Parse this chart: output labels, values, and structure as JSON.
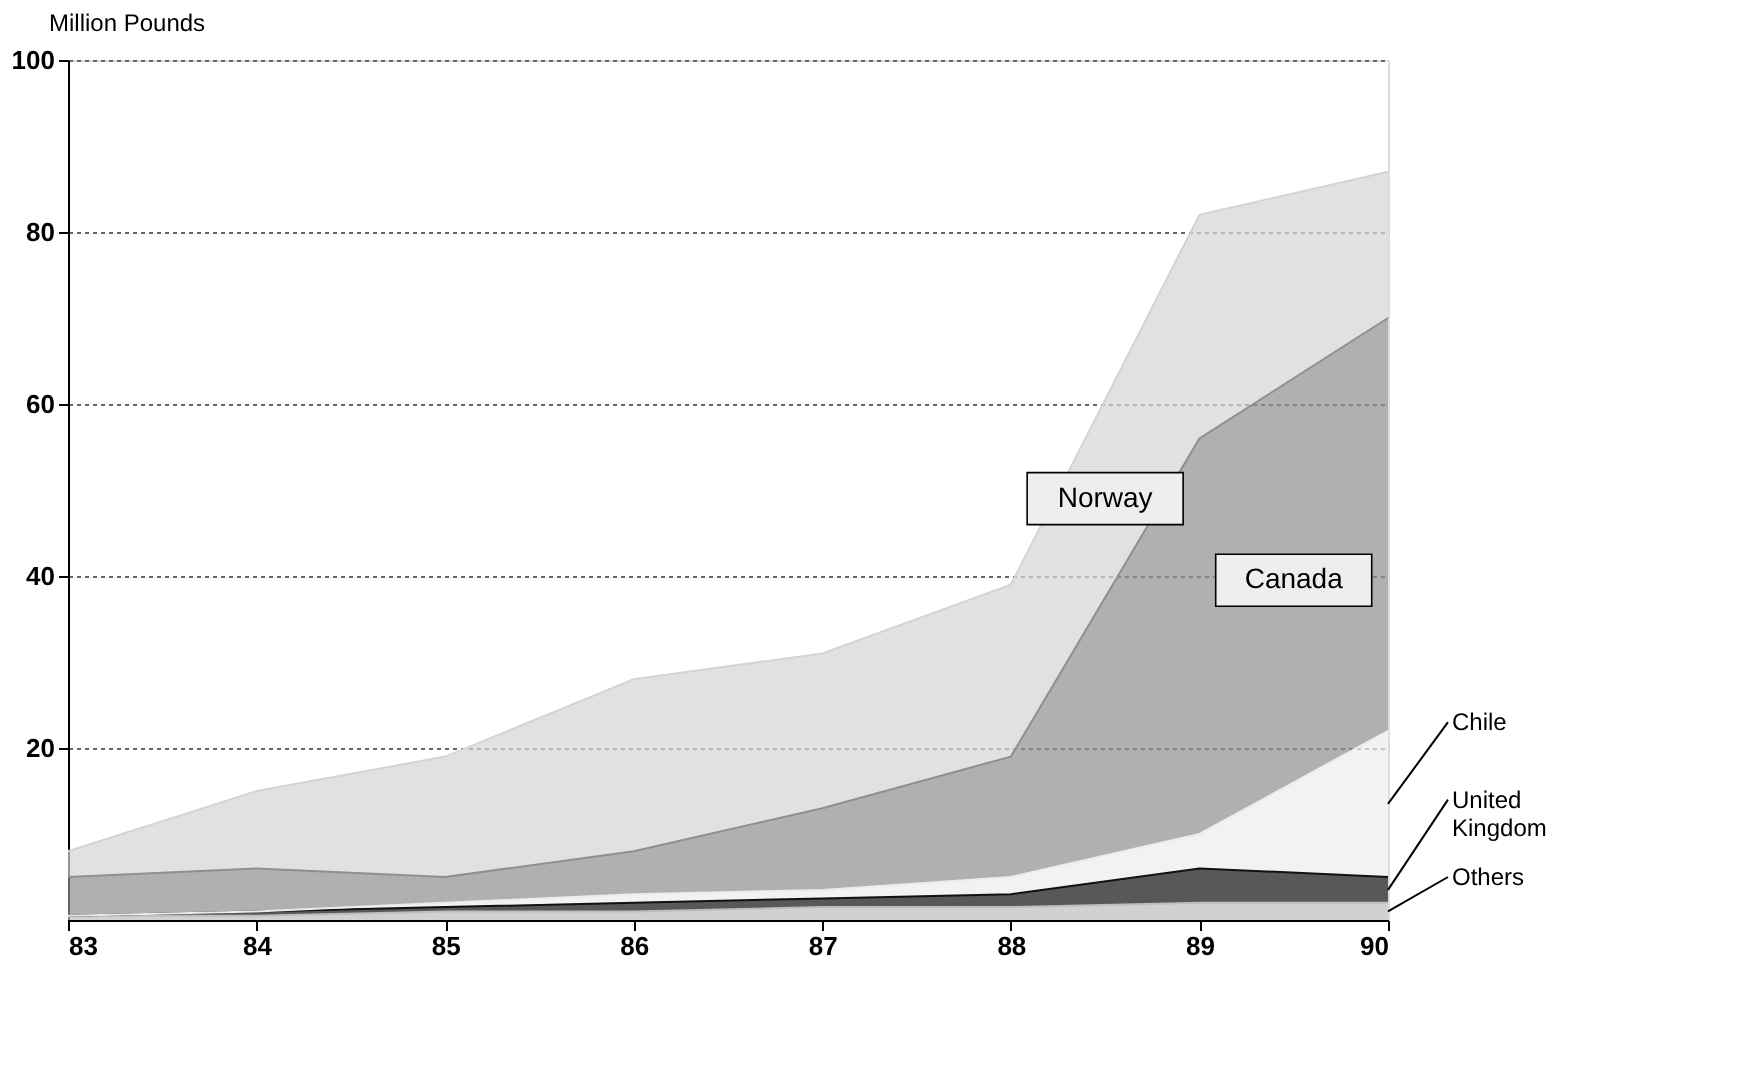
{
  "chart_data": {
    "type": "area",
    "stacked": true,
    "ylabel": "Million Pounds",
    "x": [
      83,
      84,
      85,
      86,
      87,
      88,
      89,
      90
    ],
    "xlim": [
      83,
      90
    ],
    "xticks": [
      83,
      84,
      85,
      86,
      87,
      88,
      89,
      90
    ],
    "ylim": [
      0,
      100
    ],
    "yticks": [
      20,
      40,
      60,
      80,
      100
    ],
    "grid": "y",
    "legend": false,
    "series": [
      {
        "name": "Others",
        "color": "#bdbdbd",
        "values": [
          0.5,
          0.5,
          1,
          1,
          1.5,
          1.5,
          2,
          2
        ]
      },
      {
        "name": "United Kingdom",
        "color": "#111111",
        "values": [
          0,
          0.5,
          0.5,
          1,
          1,
          1.5,
          4,
          3
        ]
      },
      {
        "name": "Chile",
        "color": "#ececec",
        "values": [
          0,
          0,
          0.5,
          1,
          1,
          2,
          4,
          17
        ]
      },
      {
        "name": "Canada",
        "color": "#8f8f8f",
        "values": [
          4.5,
          5,
          3,
          5,
          9.5,
          14,
          46,
          48
        ]
      },
      {
        "name": "Norway",
        "color": "#d4d4d4",
        "values": [
          3,
          9,
          14,
          20,
          18,
          20,
          26,
          17
        ]
      }
    ]
  }
}
